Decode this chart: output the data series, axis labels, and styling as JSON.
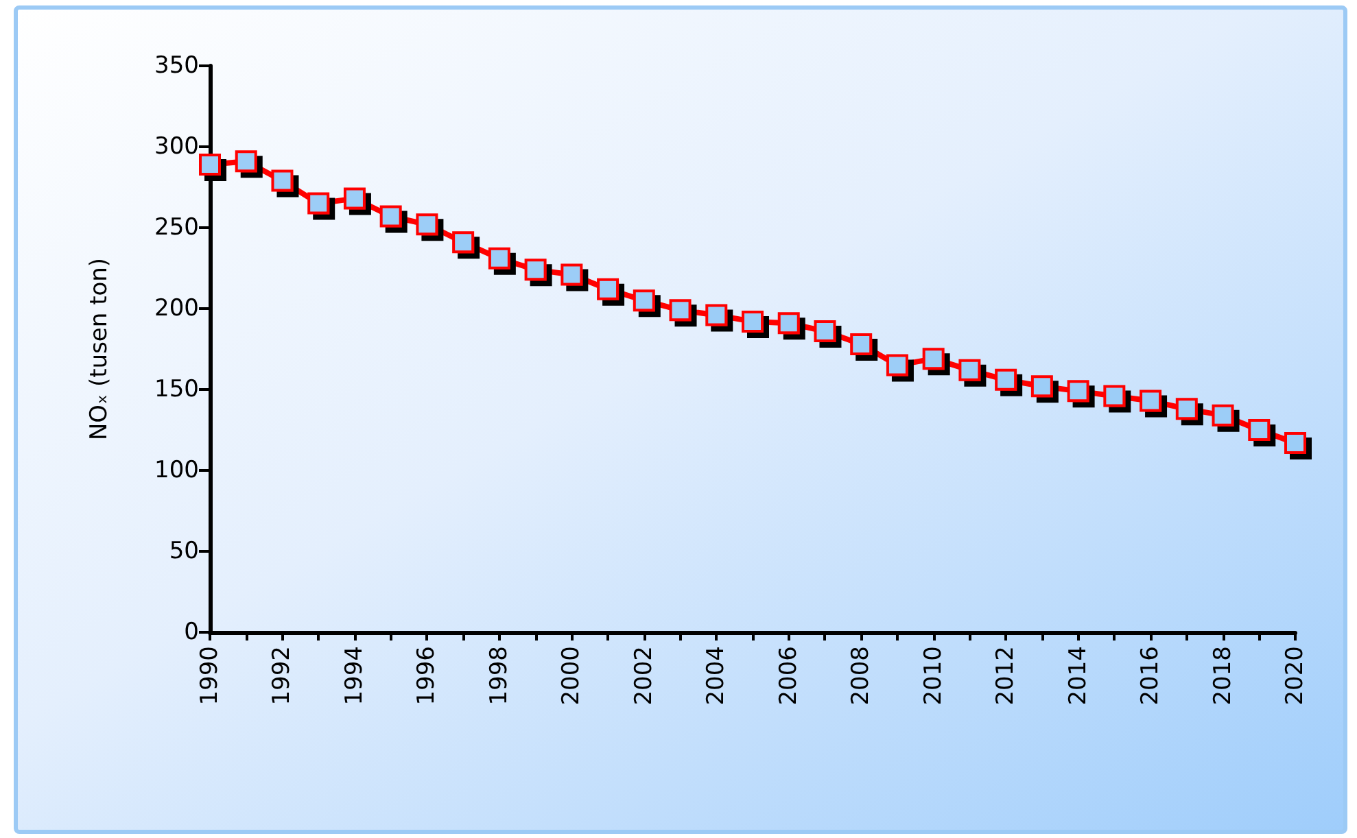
{
  "chart_data": {
    "type": "line",
    "ylabel": "NOₓ (tusen ton)",
    "categories": [
      "1990",
      null,
      "1992",
      null,
      "1994",
      null,
      "1996",
      null,
      "1998",
      null,
      "2000",
      null,
      "2002",
      null,
      "2004",
      null,
      "2006",
      null,
      "2008",
      null,
      "2010",
      null,
      "2012",
      null,
      "2014",
      null,
      "2016",
      null,
      "2018",
      null,
      "2020"
    ],
    "series": [
      {
        "color": "#ff0000",
        "values": [
          289,
          291,
          279,
          265,
          268,
          257,
          252,
          241,
          231,
          224,
          221,
          212,
          205,
          199,
          196,
          192,
          191,
          186,
          178,
          165,
          169,
          162,
          156,
          152,
          149,
          146,
          143,
          138,
          134,
          125,
          117
        ]
      }
    ],
    "ylim": [
      0,
      350
    ],
    "yticks": [
      0,
      50,
      100,
      150,
      200,
      250,
      300,
      350
    ],
    "grid": false,
    "marker": "square",
    "line_style": "solid"
  }
}
